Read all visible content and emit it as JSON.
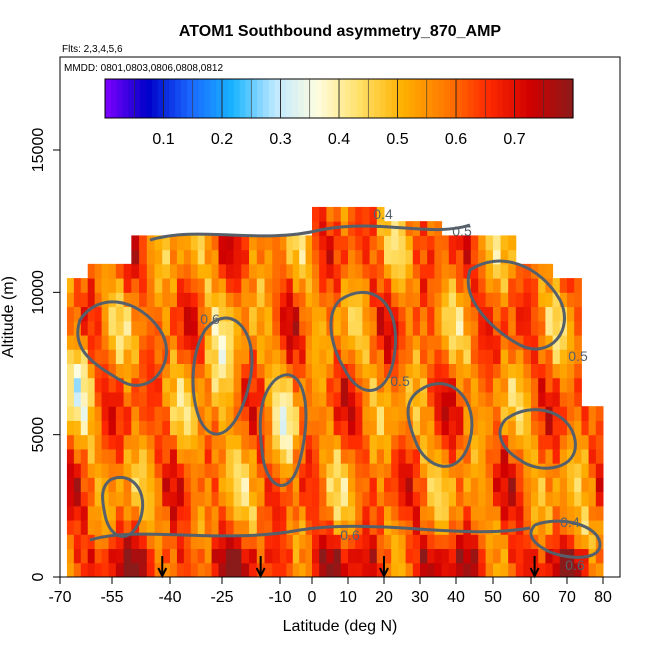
{
  "chart_data": {
    "type": "heatmap",
    "title": "ATOM1 Southbound asymmetry_870_AMP",
    "subtitle_flights": "Flts: 2,3,4,5,6",
    "subtitle_dates": "MMDD: 0801,0803,0806,0808,0812",
    "xlabel": "Latitude (deg N)",
    "ylabel": "Altitude (m)",
    "x_ticks": [
      -70,
      -55,
      -40,
      -25,
      -10,
      0,
      10,
      20,
      30,
      40,
      50,
      60,
      70,
      80
    ],
    "y_ticks": [
      0,
      5000,
      10000,
      15000
    ],
    "colorbar_ticks": [
      0.1,
      0.2,
      0.3,
      0.4,
      0.5,
      0.6,
      0.7
    ],
    "colorbar_range": [
      0.0,
      0.8
    ],
    "colormap": [
      "#7f00ff",
      "#0000c8",
      "#1a66ff",
      "#18b4ff",
      "#bfe8ff",
      "#fffde0",
      "#ffe066",
      "#ffb000",
      "#ff7a00",
      "#ff2a00",
      "#d00000",
      "#8b1a1a"
    ],
    "contour_levels": [
      0.4,
      0.5,
      0.6
    ],
    "contour_labels": [
      "0.4",
      "0.5",
      "0.6"
    ],
    "colorbar_position": "top",
    "arrow_latitudes": [
      -42,
      -15,
      20,
      61
    ],
    "grid": false
  }
}
